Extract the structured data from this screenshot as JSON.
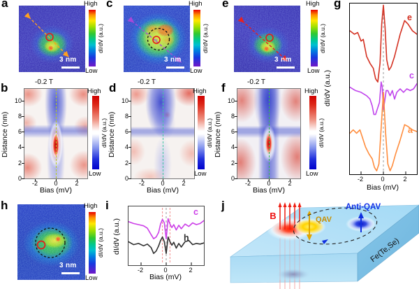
{
  "letters": {
    "a": "a",
    "b": "b",
    "c": "c",
    "d": "d",
    "e": "e",
    "f": "f",
    "g": "g",
    "h": "h",
    "i": "i",
    "j": "j"
  },
  "colorbar": {
    "high": "High",
    "low": "Low",
    "label": "dI/dV (a.u.)"
  },
  "scale_bar": {
    "label": "3 nm"
  },
  "field_label": "-0.2 T",
  "axes": {
    "bias_label": "Bias (mV)",
    "distance_label": "Distance (nm)",
    "didv_label": "dI/dV (a.u.)",
    "bias_ticks": [
      "-2",
      "0",
      "2"
    ],
    "distance_ticks": [
      "10",
      "8",
      "6",
      "4",
      "2",
      "0"
    ]
  },
  "panel_j": {
    "field": "B",
    "qav": "QAV",
    "anti_qav": "Anti-QAV",
    "material": "Fe(Te,Se)"
  },
  "map_markers": {
    "a": {
      "arrow_color": "#ffa020",
      "impurity_circle": "red"
    },
    "c": {
      "arrow_color": "#a848d8",
      "impurity_circle": "red",
      "vortex_circle": "black dashed"
    },
    "e": {
      "arrow_color": "#e82020",
      "impurity_circle": "red"
    },
    "h": {
      "impurity_circle": "red",
      "vortex_circle": "black dashed"
    }
  },
  "chart_data": [
    {
      "id": "g",
      "type": "line",
      "xlabel": "Bias (mV)",
      "ylabel": "dI/dV (a.u.)",
      "xlim": [
        -3,
        3
      ],
      "ylim": [
        0,
        100
      ],
      "xticks": [
        -2,
        0,
        2
      ],
      "vlines": [
        {
          "x": 0,
          "color": "#999999",
          "dash": "3,3"
        }
      ],
      "series": [
        {
          "name": "e",
          "color": "#d43122",
          "x": [
            -3,
            -2.6,
            -2.3,
            -2,
            -1.8,
            -1.5,
            -1.2,
            -0.9,
            -0.7,
            -0.5,
            -0.3,
            -0.15,
            0,
            0.15,
            0.3,
            0.5,
            0.7,
            1,
            1.5,
            1.9,
            2.2,
            2.6,
            3
          ],
          "y": [
            84,
            82,
            83,
            78,
            79,
            69,
            65,
            62,
            56,
            54,
            65,
            88,
            99,
            86,
            67,
            61,
            63,
            69,
            82,
            90,
            88,
            84,
            82
          ]
        },
        {
          "name": "c",
          "color": "#c044ec",
          "x": [
            -3,
            -2.5,
            -2,
            -1.5,
            -1.2,
            -1,
            -0.85,
            -0.7,
            -0.5,
            -0.35,
            -0.2,
            -0.1,
            0,
            0.1,
            0.25,
            0.4,
            0.6,
            0.8,
            1,
            1.2,
            1.5,
            1.8,
            2.1,
            2.4,
            2.7,
            3
          ],
          "y": [
            51,
            49,
            48,
            46,
            44,
            40,
            35,
            35,
            39,
            42,
            54,
            51,
            38,
            42,
            49,
            49,
            46,
            49,
            44,
            48,
            50,
            48,
            50,
            49,
            50,
            53
          ]
        },
        {
          "name": "a",
          "color": "#ff8c3c",
          "x": [
            -3,
            -2.7,
            -2.4,
            -2.1,
            -1.9,
            -1.6,
            -1.3,
            -1,
            -0.8,
            -0.6,
            -0.4,
            -0.2,
            0,
            0.2,
            0.4,
            0.6,
            0.8,
            1.1,
            1.5,
            1.9,
            2.2,
            2.6,
            3
          ],
          "y": [
            24,
            26,
            24,
            26,
            22,
            16,
            12,
            9,
            4,
            2,
            6,
            27,
            48,
            24,
            6,
            2,
            5,
            12,
            20,
            29,
            28,
            26,
            25
          ]
        }
      ]
    },
    {
      "id": "i",
      "type": "line",
      "xlabel": "Bias (mV)",
      "ylabel": "dI/dV (a.u.)",
      "xlim": [
        -3,
        3
      ],
      "ylim": [
        0,
        100
      ],
      "xticks": [
        -2,
        0,
        2
      ],
      "vlines": [
        {
          "x": -0.3,
          "color": "#f28a8a",
          "dash": "3,2"
        },
        {
          "x": 0,
          "color": "#999999",
          "dash": "3,3"
        },
        {
          "x": 0.3,
          "color": "#f28a8a",
          "dash": "3,2"
        }
      ],
      "series": [
        {
          "name": "c",
          "color": "#cc3fe8",
          "x": [
            -3,
            -2.6,
            -2.2,
            -1.8,
            -1.5,
            -1.2,
            -1,
            -0.8,
            -0.6,
            -0.45,
            -0.3,
            -0.15,
            0,
            0.15,
            0.3,
            0.45,
            0.6,
            0.8,
            1,
            1.2,
            1.5,
            1.8,
            2.1,
            2.4,
            2.7,
            3
          ],
          "y": [
            74,
            71,
            69,
            67,
            63,
            52,
            45,
            48,
            56,
            70,
            78,
            72,
            45,
            79,
            70,
            64,
            69,
            60,
            68,
            62,
            70,
            66,
            72,
            69,
            71,
            76
          ]
        },
        {
          "name": "h",
          "color": "#303030",
          "x": [
            -3,
            -2.6,
            -2.2,
            -1.8,
            -1.5,
            -1.2,
            -1,
            -0.8,
            -0.6,
            -0.45,
            -0.3,
            -0.15,
            0,
            0.15,
            0.3,
            0.45,
            0.6,
            0.8,
            1,
            1.2,
            1.5,
            1.8,
            2.1,
            2.4,
            2.7,
            3
          ],
          "y": [
            40,
            35,
            37,
            33,
            36,
            30,
            20,
            24,
            33,
            42,
            48,
            40,
            20,
            48,
            40,
            34,
            39,
            29,
            37,
            31,
            40,
            42,
            35,
            37,
            36,
            38
          ]
        }
      ]
    },
    {
      "id": "b",
      "type": "heatmap",
      "title": "-0.2 T",
      "xlabel": "Bias (mV)",
      "ylabel": "Distance (nm)",
      "xlim": [
        -3,
        3
      ],
      "ylim": [
        0,
        11.5
      ],
      "xticks": [
        -2,
        0,
        2
      ],
      "yticks": [
        0,
        2,
        4,
        6,
        8,
        10
      ],
      "colormap": "blue-white-red",
      "guide_color": "#b8cc20",
      "features": "sharp zero-bias high-conductance core at distance ~4 nm; low-conductance column along zero bias; suppressed band near 6 nm; enhanced conductance at |bias| > 1.5 mV"
    },
    {
      "id": "d",
      "type": "heatmap",
      "title": "-0.2 T",
      "xlabel": "Bias (mV)",
      "ylabel": "Distance (nm)",
      "xlim": [
        -3,
        3
      ],
      "ylim": [
        0,
        11.5
      ],
      "xticks": [
        -2,
        0,
        2
      ],
      "yticks": [
        0,
        2,
        4,
        6,
        8,
        10
      ],
      "colormap": "blue-white-red",
      "guide_color": "#3cc8a0",
      "features": "no zero-bias core; broad low-conductance column from 6-11 nm; suppressed band near 5.5 nm; enhanced conductance at large |bias|"
    },
    {
      "id": "f",
      "type": "heatmap",
      "title": "-0.2 T",
      "xlabel": "Bias (mV)",
      "ylabel": "Distance (nm)",
      "xlim": [
        -3,
        3
      ],
      "ylim": [
        0,
        11.5
      ],
      "xticks": [
        -2,
        0,
        2
      ],
      "yticks": [
        0,
        2,
        4,
        6,
        8,
        10
      ],
      "colormap": "blue-white-red",
      "guide_color": "#38b850",
      "features": "zero-bias high-conductance core at distance ~4.5 nm; broad low-conductance column; suppressed band near 5.5 nm; enhanced side regions"
    }
  ]
}
